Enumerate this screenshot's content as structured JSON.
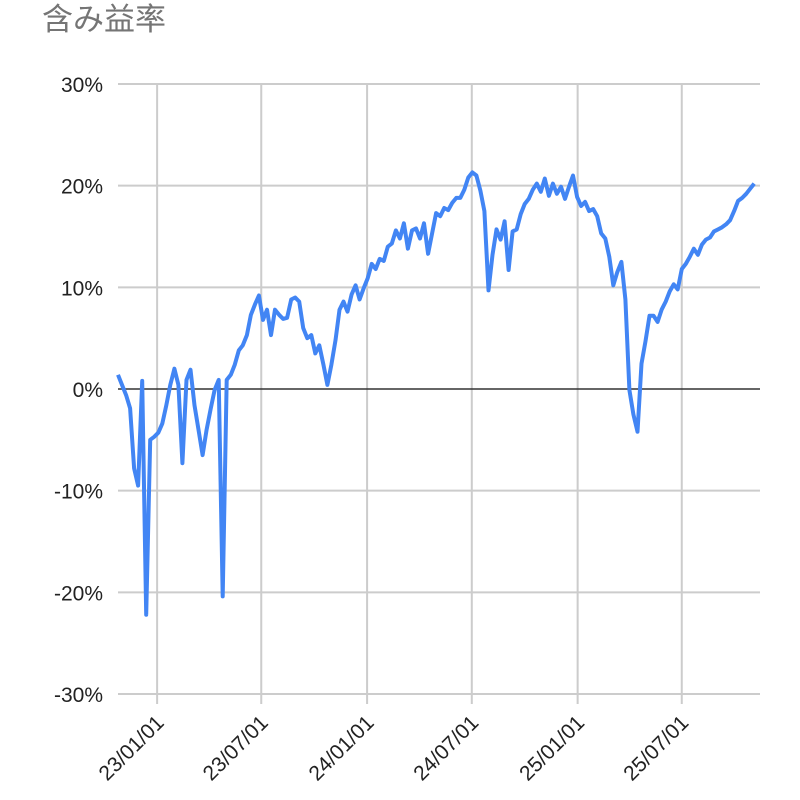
{
  "chart_data": {
    "type": "line",
    "title": "含み益率",
    "xlabel": "",
    "ylabel": "",
    "ylim": [
      -30,
      30
    ],
    "xlim": [
      "2022-10-25",
      "2025-11-14"
    ],
    "y_ticks": [
      "30%",
      "20%",
      "10%",
      "0%",
      "-10%",
      "-20%",
      "-30%"
    ],
    "y_tick_values": [
      30,
      20,
      10,
      0,
      -10,
      -20,
      -30
    ],
    "x_ticks": [
      "23/01/01",
      "23/07/01",
      "24/01/01",
      "24/07/01",
      "25/01/01",
      "25/07/01"
    ],
    "x_tick_dates": [
      "2023-01-01",
      "2023-07-01",
      "2024-01-01",
      "2024-07-01",
      "2025-01-01",
      "2025-07-01"
    ],
    "grid": true,
    "legend": "none",
    "line_color": "#4285f4",
    "x_start": "2022-10-25",
    "x_step_days": 7,
    "values": [
      1.4,
      0.4,
      -0.6,
      -1.9,
      -7.8,
      -9.5,
      0.8,
      -22.2,
      -5.0,
      -4.7,
      -4.3,
      -3.4,
      -1.6,
      0.4,
      2.0,
      0.4,
      -7.3,
      0.9,
      1.9,
      -1.6,
      -4.0,
      -6.5,
      -4.0,
      -2.0,
      -0.1,
      0.9,
      -20.4,
      0.9,
      1.4,
      2.4,
      3.8,
      4.3,
      5.3,
      7.3,
      8.3,
      9.2,
      6.8,
      7.8,
      5.3,
      7.8,
      7.3,
      6.9,
      7.0,
      8.8,
      9.0,
      8.6,
      6.0,
      5.0,
      5.3,
      3.5,
      4.3,
      2.4,
      0.4,
      2.4,
      4.8,
      7.8,
      8.6,
      7.6,
      9.3,
      10.2,
      8.8,
      9.9,
      10.9,
      12.3,
      11.8,
      12.8,
      12.6,
      14.0,
      14.3,
      15.6,
      14.8,
      16.3,
      13.8,
      15.6,
      15.8,
      14.8,
      16.3,
      13.3,
      15.3,
      17.3,
      17.0,
      17.8,
      17.6,
      18.3,
      18.8,
      18.8,
      19.6,
      20.8,
      21.3,
      21.0,
      19.5,
      17.5,
      9.7,
      13.2,
      15.7,
      14.7,
      16.5,
      11.7,
      15.5,
      15.7,
      17.2,
      18.2,
      18.7,
      19.6,
      20.2,
      19.4,
      20.7,
      19.0,
      20.2,
      19.2,
      19.9,
      18.7,
      19.9,
      21.0,
      18.9,
      18.0,
      18.4,
      17.5,
      17.7,
      17.0,
      15.3,
      14.8,
      13.0,
      10.2,
      11.5,
      12.5,
      8.8,
      -0.1,
      -2.5,
      -4.2,
      2.5,
      4.7,
      7.2,
      7.2,
      6.6,
      7.8,
      8.6,
      9.6,
      10.3,
      9.8,
      11.8,
      12.3,
      13.0,
      13.8,
      13.2,
      14.2,
      14.7,
      14.9,
      15.5,
      15.7,
      15.9,
      16.2,
      16.6,
      17.5,
      18.5,
      18.8,
      19.2,
      19.7,
      20.2
    ]
  }
}
